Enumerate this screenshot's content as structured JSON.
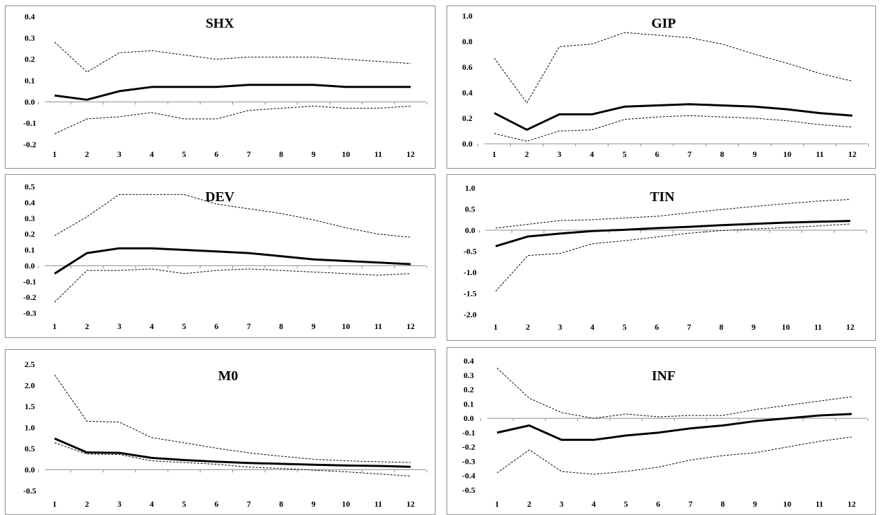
{
  "chart_data": [
    {
      "type": "line",
      "title": "SHX",
      "x": [
        1,
        2,
        3,
        4,
        5,
        6,
        7,
        8,
        9,
        10,
        11,
        12
      ],
      "ylim": [
        -0.2,
        0.4
      ],
      "yticks": [
        "0.4",
        "0.3",
        "0.2",
        "0.1",
        "0.0",
        "-0.1",
        "-0.2"
      ],
      "ytick_values": [
        0.4,
        0.3,
        0.2,
        0.1,
        0.0,
        -0.1,
        -0.2
      ],
      "grid": false,
      "series": [
        {
          "style": "solid",
          "values": [
            0.03,
            0.01,
            0.05,
            0.07,
            0.07,
            0.07,
            0.08,
            0.08,
            0.08,
            0.07,
            0.07,
            0.07
          ]
        },
        {
          "style": "dashed",
          "values": [
            0.28,
            0.14,
            0.23,
            0.24,
            0.22,
            0.2,
            0.21,
            0.21,
            0.21,
            0.2,
            0.19,
            0.18
          ]
        },
        {
          "style": "dashed",
          "values": [
            -0.15,
            -0.08,
            -0.07,
            -0.05,
            -0.08,
            -0.08,
            -0.04,
            -0.03,
            -0.02,
            -0.03,
            -0.03,
            -0.02
          ]
        }
      ]
    },
    {
      "type": "line",
      "title": "GIP",
      "x": [
        1,
        2,
        3,
        4,
        5,
        6,
        7,
        8,
        9,
        10,
        11,
        12
      ],
      "ylim": [
        0.0,
        1.0
      ],
      "yticks": [
        "1.0",
        "0.8",
        "0.6",
        "0.4",
        "0.2",
        "0.0"
      ],
      "ytick_values": [
        1.0,
        0.8,
        0.6,
        0.4,
        0.2,
        0.0
      ],
      "grid": false,
      "series": [
        {
          "style": "solid",
          "values": [
            0.24,
            0.11,
            0.23,
            0.23,
            0.29,
            0.3,
            0.31,
            0.3,
            0.29,
            0.27,
            0.24,
            0.22
          ]
        },
        {
          "style": "dashed",
          "values": [
            0.67,
            0.32,
            0.76,
            0.78,
            0.87,
            0.85,
            0.83,
            0.78,
            0.7,
            0.63,
            0.55,
            0.49
          ]
        },
        {
          "style": "dashed",
          "values": [
            0.08,
            0.02,
            0.1,
            0.11,
            0.19,
            0.21,
            0.22,
            0.21,
            0.2,
            0.18,
            0.15,
            0.13
          ]
        }
      ]
    },
    {
      "type": "line",
      "title": "DEV",
      "x": [
        1,
        2,
        3,
        4,
        5,
        6,
        7,
        8,
        9,
        10,
        11,
        12
      ],
      "ylim": [
        -0.3,
        0.5
      ],
      "yticks": [
        "0.5",
        "0.4",
        "0.3",
        "0.2",
        "0.1",
        "0.0",
        "-0.1",
        "-0.2",
        "-0.3"
      ],
      "ytick_values": [
        0.5,
        0.4,
        0.3,
        0.2,
        0.1,
        0.0,
        -0.1,
        -0.2,
        -0.3
      ],
      "grid": false,
      "series": [
        {
          "style": "solid",
          "values": [
            -0.05,
            0.08,
            0.11,
            0.11,
            0.1,
            0.09,
            0.08,
            0.06,
            0.04,
            0.03,
            0.02,
            0.01
          ]
        },
        {
          "style": "dashed",
          "values": [
            0.19,
            0.31,
            0.45,
            0.45,
            0.45,
            0.39,
            0.36,
            0.33,
            0.29,
            0.24,
            0.2,
            0.18
          ]
        },
        {
          "style": "dashed",
          "values": [
            -0.23,
            -0.03,
            -0.03,
            -0.02,
            -0.05,
            -0.03,
            -0.02,
            -0.03,
            -0.04,
            -0.05,
            -0.06,
            -0.05
          ]
        }
      ]
    },
    {
      "type": "line",
      "title": "TIN",
      "x": [
        1,
        2,
        3,
        4,
        5,
        6,
        7,
        8,
        9,
        10,
        11,
        12
      ],
      "ylim": [
        -2.0,
        1.0
      ],
      "yticks": [
        "1.0",
        "0.5",
        "0.0",
        "-0.5",
        "-1.0",
        "-1.5",
        "-2.0"
      ],
      "ytick_values": [
        1.0,
        0.5,
        0.0,
        -0.5,
        -1.0,
        -1.5,
        -2.0
      ],
      "grid": false,
      "series": [
        {
          "style": "solid",
          "values": [
            -0.38,
            -0.15,
            -0.08,
            -0.02,
            0.01,
            0.05,
            0.08,
            0.12,
            0.15,
            0.18,
            0.2,
            0.22
          ]
        },
        {
          "style": "dashed",
          "values": [
            0.05,
            0.14,
            0.23,
            0.25,
            0.29,
            0.33,
            0.41,
            0.49,
            0.56,
            0.63,
            0.69,
            0.73
          ]
        },
        {
          "style": "dashed",
          "values": [
            -1.45,
            -0.6,
            -0.55,
            -0.32,
            -0.25,
            -0.16,
            -0.07,
            -0.01,
            0.03,
            0.06,
            0.1,
            0.15
          ]
        }
      ]
    },
    {
      "type": "line",
      "title": "M0",
      "x": [
        1,
        2,
        3,
        4,
        5,
        6,
        7,
        8,
        9,
        10,
        11,
        12
      ],
      "ylim": [
        -0.5,
        2.5
      ],
      "yticks": [
        "2.5",
        "2.0",
        "1.5",
        "1.0",
        "0.5",
        "0.0",
        "-0.5"
      ],
      "ytick_values": [
        2.5,
        2.0,
        1.5,
        1.0,
        0.5,
        0.0,
        -0.5
      ],
      "grid": false,
      "series": [
        {
          "style": "solid",
          "values": [
            0.74,
            0.41,
            0.4,
            0.28,
            0.23,
            0.19,
            0.16,
            0.14,
            0.12,
            0.1,
            0.09,
            0.07
          ]
        },
        {
          "style": "dashed",
          "values": [
            2.25,
            1.15,
            1.13,
            0.76,
            0.64,
            0.51,
            0.4,
            0.32,
            0.25,
            0.21,
            0.19,
            0.17
          ]
        },
        {
          "style": "dashed",
          "values": [
            0.64,
            0.37,
            0.36,
            0.21,
            0.17,
            0.13,
            0.06,
            0.03,
            -0.01,
            -0.05,
            -0.1,
            -0.15
          ]
        }
      ]
    },
    {
      "type": "line",
      "title": "INF",
      "x": [
        1,
        2,
        3,
        4,
        5,
        6,
        7,
        8,
        9,
        10,
        11,
        12
      ],
      "ylim": [
        -0.5,
        0.4
      ],
      "yticks": [
        "0.4",
        "0.3",
        "0.2",
        "0.1",
        "0.0",
        "-0.1",
        "-0.2",
        "-0.3",
        "-0.4",
        "-0.5"
      ],
      "ytick_values": [
        0.4,
        0.3,
        0.2,
        0.1,
        0.0,
        -0.1,
        -0.2,
        -0.3,
        -0.4,
        -0.5
      ],
      "grid": false,
      "series": [
        {
          "style": "solid",
          "values": [
            -0.1,
            -0.05,
            -0.15,
            -0.15,
            -0.12,
            -0.1,
            -0.07,
            -0.05,
            -0.02,
            0.0,
            0.02,
            0.03
          ]
        },
        {
          "style": "dashed",
          "values": [
            0.35,
            0.14,
            0.04,
            0.0,
            0.03,
            0.01,
            0.02,
            0.02,
            0.06,
            0.09,
            0.12,
            0.15
          ]
        },
        {
          "style": "dashed",
          "values": [
            -0.38,
            -0.22,
            -0.37,
            -0.39,
            -0.37,
            -0.34,
            -0.29,
            -0.26,
            -0.24,
            -0.2,
            -0.16,
            -0.13
          ]
        }
      ]
    }
  ]
}
